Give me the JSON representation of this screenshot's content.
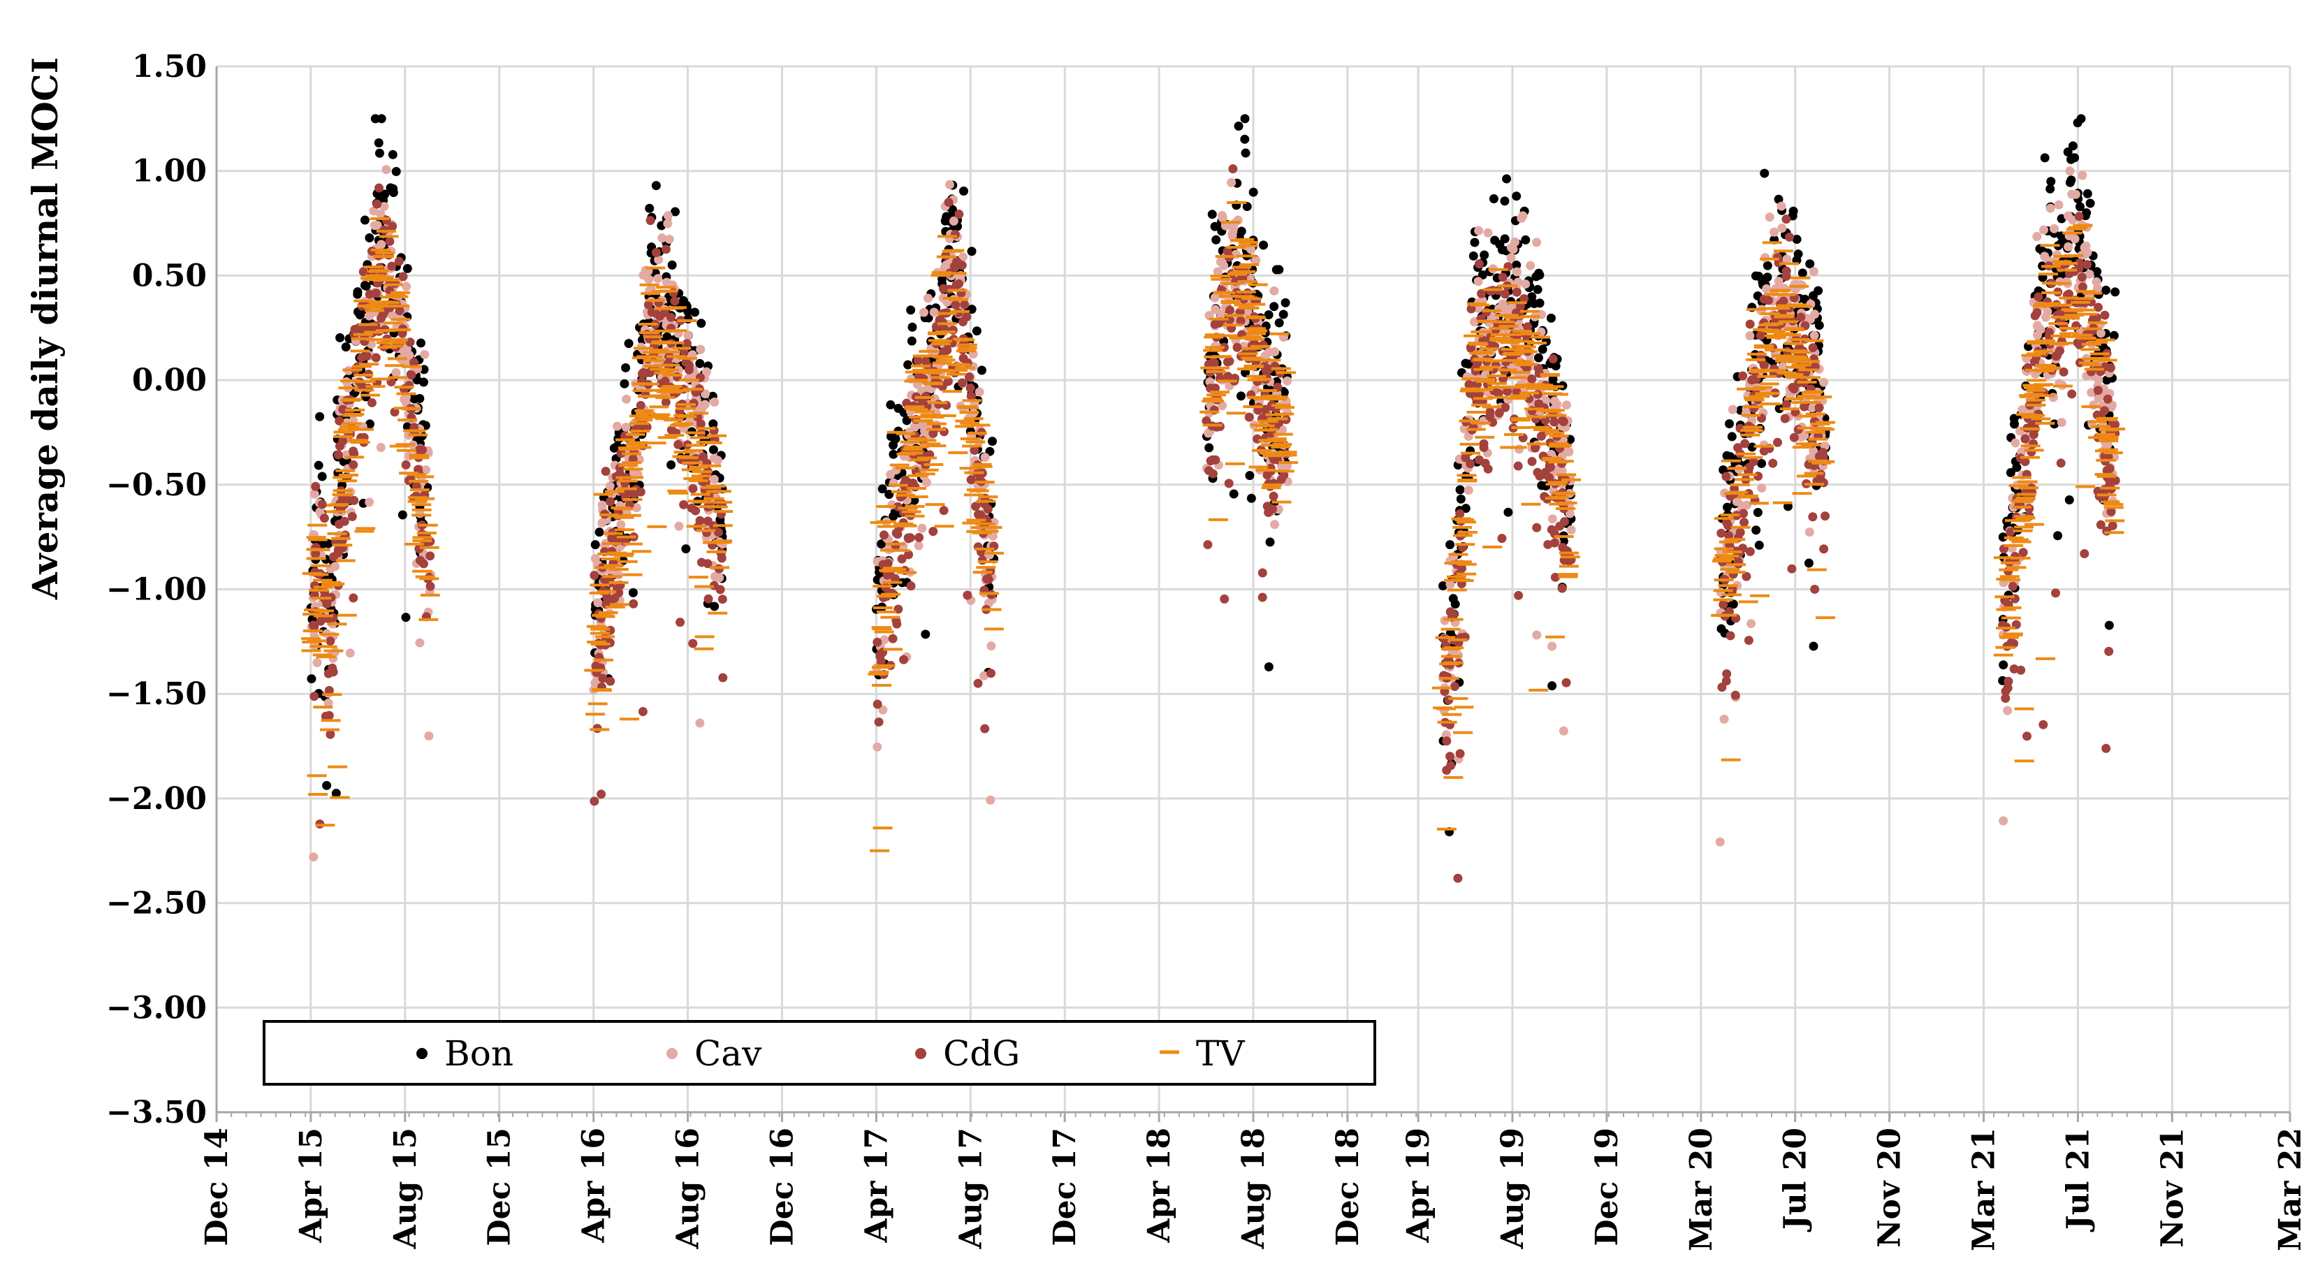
{
  "chart_data": {
    "type": "scatter",
    "title": "",
    "xlabel": "",
    "ylabel": "Average daily diurnal MOCI",
    "ylim": [
      -3.5,
      1.5
    ],
    "yticks": [
      1.5,
      1.0,
      0.5,
      0.0,
      -0.5,
      -1.0,
      -1.5,
      -2.0,
      -2.5,
      -3.0,
      -3.5
    ],
    "ytick_labels": [
      "1.50",
      "1.00",
      "0.50",
      "0.00",
      "−0.50",
      "−1.00",
      "−1.50",
      "−2.00",
      "−2.50",
      "−3.00",
      "−3.50"
    ],
    "xlim": [
      0,
      88
    ],
    "x_unit": "months since Dec 2014",
    "xticks": [
      0,
      4,
      8,
      12,
      16,
      20,
      24,
      28,
      32,
      36,
      40,
      44,
      48,
      51,
      55,
      59,
      63,
      67,
      71,
      75,
      79,
      83,
      88
    ],
    "xtick_labels": [
      "Dec 14",
      "Apr 15",
      "Aug 15",
      "Dec 15",
      "Apr 16",
      "Aug 16",
      "Dec 16",
      "Apr 17",
      "Aug 17",
      "Dec 17",
      "Apr 18",
      "Aug 18",
      "Dec 18",
      "Apr 19",
      "Aug 19",
      "Dec 19",
      "Mar 20",
      "Jul 20",
      "Nov 20",
      "Mar 21",
      "Jul 21",
      "Nov 21",
      "Mar 22"
    ],
    "grid": true,
    "legend_position": "bottom-left",
    "series": [
      {
        "name": "Bon",
        "marker": "dot",
        "color": "#000000"
      },
      {
        "name": "Cav",
        "marker": "dot",
        "color": "#e3aaa3"
      },
      {
        "name": "CdG",
        "marker": "dot",
        "color": "#a3413d"
      },
      {
        "name": "TV",
        "marker": "dash",
        "color": "#ee8a14"
      }
    ],
    "seasons": [
      {
        "start": 4.0,
        "end": 9.1,
        "center": -0.05,
        "tip": 0.65,
        "envelope": [
          [
            4.0,
            -1.25
          ],
          [
            4.3,
            -0.8
          ],
          [
            4.8,
            -1.3
          ],
          [
            5.2,
            -0.6
          ],
          [
            5.8,
            -0.1
          ],
          [
            6.3,
            0.2
          ],
          [
            6.9,
            0.55
          ],
          [
            7.4,
            0.45
          ],
          [
            7.9,
            0.2
          ],
          [
            8.4,
            -0.3
          ],
          [
            9.1,
            -0.85
          ]
        ]
      },
      {
        "start": 16.0,
        "end": 21.5,
        "center": -0.35,
        "tip": 0.6,
        "envelope": [
          [
            16.0,
            -1.4
          ],
          [
            16.5,
            -0.95
          ],
          [
            17.1,
            -0.7
          ],
          [
            17.8,
            -0.35
          ],
          [
            18.4,
            0.25
          ],
          [
            19.2,
            0.15
          ],
          [
            19.8,
            -0.15
          ],
          [
            20.5,
            -0.3
          ],
          [
            21.0,
            -0.55
          ],
          [
            21.5,
            -0.8
          ]
        ]
      },
      {
        "start": 28.0,
        "end": 33.0,
        "center": -0.25,
        "tip": 0.55,
        "envelope": [
          [
            28.0,
            -1.3
          ],
          [
            28.6,
            -0.8
          ],
          [
            29.3,
            -0.5
          ],
          [
            29.9,
            -0.2
          ],
          [
            30.5,
            -0.05
          ],
          [
            31.1,
            0.5
          ],
          [
            31.6,
            0.3
          ],
          [
            32.1,
            -0.2
          ],
          [
            32.6,
            -0.7
          ],
          [
            33.0,
            -1.0
          ]
        ]
      },
      {
        "start": 42.0,
        "end": 45.5,
        "center": 0.2,
        "tip": 0.5,
        "envelope": [
          [
            42.0,
            -0.25
          ],
          [
            42.6,
            0.25
          ],
          [
            43.2,
            0.55
          ],
          [
            43.8,
            0.4
          ],
          [
            44.3,
            -0.05
          ],
          [
            44.9,
            -0.25
          ],
          [
            45.5,
            -0.15
          ]
        ]
      },
      {
        "start": 52.0,
        "end": 57.5,
        "center": -0.2,
        "tip": 0.6,
        "envelope": [
          [
            52.0,
            -1.5
          ],
          [
            52.5,
            -1.2
          ],
          [
            53.0,
            -0.6
          ],
          [
            53.3,
            0.05
          ],
          [
            54.0,
            0.15
          ],
          [
            54.8,
            0.25
          ],
          [
            55.4,
            0.15
          ],
          [
            56.0,
            -0.05
          ],
          [
            56.6,
            -0.25
          ],
          [
            57.1,
            -0.45
          ],
          [
            57.5,
            -0.65
          ]
        ]
      },
      {
        "start": 63.8,
        "end": 68.3,
        "center": -0.3,
        "tip": 0.6,
        "envelope": [
          [
            63.8,
            -0.95
          ],
          [
            64.4,
            -0.7
          ],
          [
            65.0,
            -0.35
          ],
          [
            65.6,
            0.1
          ],
          [
            66.2,
            0.35
          ],
          [
            66.8,
            0.25
          ],
          [
            67.3,
            0.1
          ],
          [
            67.9,
            -0.2
          ],
          [
            68.3,
            -0.35
          ]
        ]
      },
      {
        "start": 75.8,
        "end": 80.6,
        "center": -0.2,
        "tip": 0.6,
        "envelope": [
          [
            75.8,
            -1.2
          ],
          [
            76.3,
            -0.75
          ],
          [
            76.8,
            -0.4
          ],
          [
            77.3,
            0.1
          ],
          [
            77.9,
            0.35
          ],
          [
            78.5,
            0.45
          ],
          [
            79.1,
            0.5
          ],
          [
            79.6,
            0.2
          ],
          [
            80.1,
            -0.2
          ],
          [
            80.6,
            -0.4
          ]
        ]
      }
    ]
  },
  "legend": {
    "items": [
      {
        "label": "Bon"
      },
      {
        "label": "Cav"
      },
      {
        "label": "CdG"
      },
      {
        "label": "TV"
      }
    ]
  }
}
